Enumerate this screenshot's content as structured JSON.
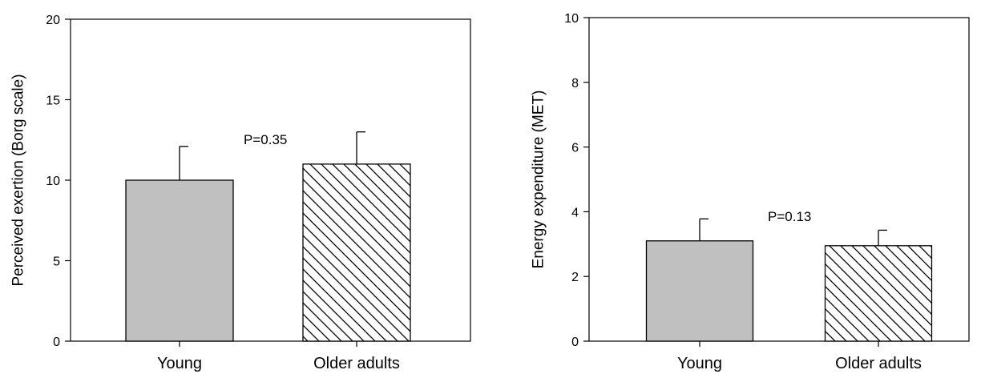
{
  "chart_data": [
    {
      "type": "bar",
      "categories": [
        "Young",
        "Older adults"
      ],
      "values": [
        10,
        11
      ],
      "errors": [
        2.1,
        2.0
      ],
      "ylabel": "Perceived exertion (Borg scale)",
      "ylim": [
        0,
        20
      ],
      "yticks": [
        0,
        5,
        10,
        15,
        20
      ],
      "annotation": "P=0.35",
      "bar_fills": [
        "gray",
        "hatched"
      ],
      "colors": {
        "gray": "#c0c0c0",
        "line": "#000000"
      },
      "grid": false
    },
    {
      "type": "bar",
      "categories": [
        "Young",
        "Older adults"
      ],
      "values": [
        3.1,
        2.95
      ],
      "errors": [
        0.68,
        0.48
      ],
      "ylabel": "Energy expenditure (MET)",
      "ylim": [
        0,
        10
      ],
      "yticks": [
        0,
        2,
        4,
        6,
        8,
        10
      ],
      "annotation": "P=0.13",
      "bar_fills": [
        "gray",
        "hatched"
      ],
      "colors": {
        "gray": "#c0c0c0",
        "line": "#000000"
      },
      "grid": false
    }
  ]
}
